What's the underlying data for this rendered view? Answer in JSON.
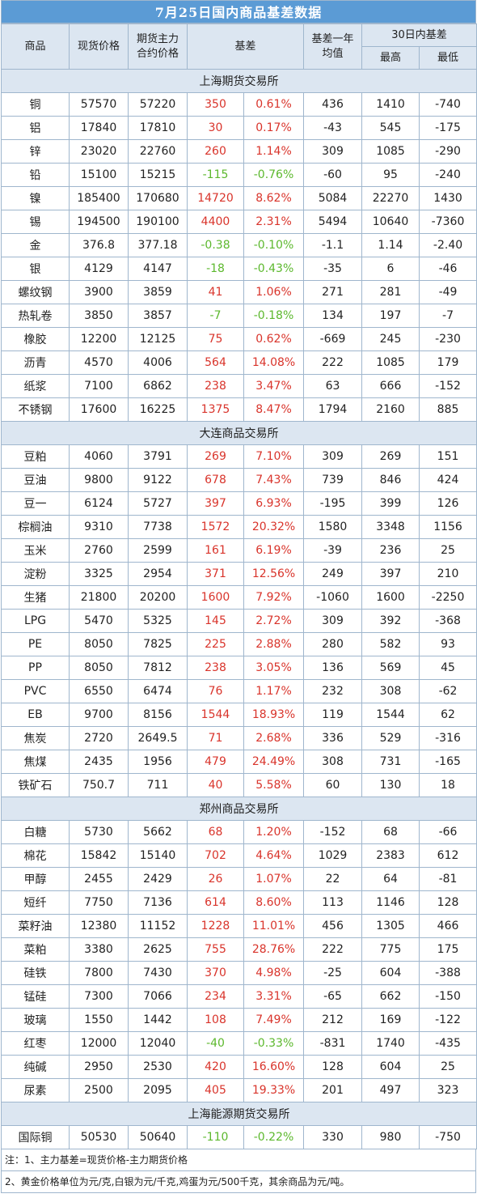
{
  "title": "7月25日国内商品基差数据",
  "headers": {
    "commodity": "商品",
    "spot": "现货价格",
    "futures_line1": "期货主力",
    "futures_line2": "合约价格",
    "basis": "基差",
    "avg_line1": "基差一年",
    "avg_line2": "均值",
    "range30": "30日内基差",
    "high": "最高",
    "low": "最低"
  },
  "colors": {
    "header_bg": "#5b9bd5",
    "section_bg": "#dce6f1",
    "positive": "#d9342b",
    "negative": "#5cb82d",
    "border": "#9fb6cd"
  },
  "sections": [
    {
      "name": "上海期货交易所",
      "rows": [
        {
          "name": "铜",
          "spot": "57570",
          "futures": "57220",
          "basis": "350",
          "pct": "0.61%",
          "avg": "436",
          "high": "1410",
          "low": "-740"
        },
        {
          "name": "铝",
          "spot": "17840",
          "futures": "17810",
          "basis": "30",
          "pct": "0.17%",
          "avg": "-43",
          "high": "545",
          "low": "-175"
        },
        {
          "name": "锌",
          "spot": "23020",
          "futures": "22760",
          "basis": "260",
          "pct": "1.14%",
          "avg": "309",
          "high": "1085",
          "low": "-290"
        },
        {
          "name": "铅",
          "spot": "15100",
          "futures": "15215",
          "basis": "-115",
          "pct": "-0.76%",
          "avg": "-60",
          "high": "95",
          "low": "-240"
        },
        {
          "name": "镍",
          "spot": "185400",
          "futures": "170680",
          "basis": "14720",
          "pct": "8.62%",
          "avg": "5084",
          "high": "22270",
          "low": "1430"
        },
        {
          "name": "锡",
          "spot": "194500",
          "futures": "190100",
          "basis": "4400",
          "pct": "2.31%",
          "avg": "5494",
          "high": "10640",
          "low": "-7360"
        },
        {
          "name": "金",
          "spot": "376.8",
          "futures": "377.18",
          "basis": "-0.38",
          "pct": "-0.10%",
          "avg": "-1.1",
          "high": "1.14",
          "low": "-2.40"
        },
        {
          "name": "银",
          "spot": "4129",
          "futures": "4147",
          "basis": "-18",
          "pct": "-0.43%",
          "avg": "-35",
          "high": "6",
          "low": "-46"
        },
        {
          "name": "螺纹钢",
          "spot": "3900",
          "futures": "3859",
          "basis": "41",
          "pct": "1.06%",
          "avg": "271",
          "high": "281",
          "low": "-49"
        },
        {
          "name": "热轧卷",
          "spot": "3850",
          "futures": "3857",
          "basis": "-7",
          "pct": "-0.18%",
          "avg": "134",
          "high": "197",
          "low": "-7"
        },
        {
          "name": "橡胶",
          "spot": "12200",
          "futures": "12125",
          "basis": "75",
          "pct": "0.62%",
          "avg": "-669",
          "high": "245",
          "low": "-230"
        },
        {
          "name": "沥青",
          "spot": "4570",
          "futures": "4006",
          "basis": "564",
          "pct": "14.08%",
          "avg": "222",
          "high": "1085",
          "low": "179"
        },
        {
          "name": "纸浆",
          "spot": "7100",
          "futures": "6862",
          "basis": "238",
          "pct": "3.47%",
          "avg": "63",
          "high": "666",
          "low": "-152"
        },
        {
          "name": "不锈钢",
          "spot": "17600",
          "futures": "16225",
          "basis": "1375",
          "pct": "8.47%",
          "avg": "1794",
          "high": "2160",
          "low": "885"
        }
      ]
    },
    {
      "name": "大连商品交易所",
      "rows": [
        {
          "name": "豆粕",
          "spot": "4060",
          "futures": "3791",
          "basis": "269",
          "pct": "7.10%",
          "avg": "309",
          "high": "269",
          "low": "151"
        },
        {
          "name": "豆油",
          "spot": "9800",
          "futures": "9122",
          "basis": "678",
          "pct": "7.43%",
          "avg": "739",
          "high": "846",
          "low": "424"
        },
        {
          "name": "豆一",
          "spot": "6124",
          "futures": "5727",
          "basis": "397",
          "pct": "6.93%",
          "avg": "-195",
          "high": "399",
          "low": "126"
        },
        {
          "name": "棕榈油",
          "spot": "9310",
          "futures": "7738",
          "basis": "1572",
          "pct": "20.32%",
          "avg": "1580",
          "high": "3348",
          "low": "1156"
        },
        {
          "name": "玉米",
          "spot": "2760",
          "futures": "2599",
          "basis": "161",
          "pct": "6.19%",
          "avg": "-39",
          "high": "236",
          "low": "25"
        },
        {
          "name": "淀粉",
          "spot": "3325",
          "futures": "2954",
          "basis": "371",
          "pct": "12.56%",
          "avg": "249",
          "high": "397",
          "low": "210"
        },
        {
          "name": "生猪",
          "spot": "21800",
          "futures": "20200",
          "basis": "1600",
          "pct": "7.92%",
          "avg": "-1060",
          "high": "1600",
          "low": "-2250"
        },
        {
          "name": "LPG",
          "spot": "5470",
          "futures": "5325",
          "basis": "145",
          "pct": "2.72%",
          "avg": "309",
          "high": "392",
          "low": "-368"
        },
        {
          "name": "PE",
          "spot": "8050",
          "futures": "7825",
          "basis": "225",
          "pct": "2.88%",
          "avg": "280",
          "high": "582",
          "low": "93"
        },
        {
          "name": "PP",
          "spot": "8050",
          "futures": "7812",
          "basis": "238",
          "pct": "3.05%",
          "avg": "136",
          "high": "569",
          "low": "45"
        },
        {
          "name": "PVC",
          "spot": "6550",
          "futures": "6474",
          "basis": "76",
          "pct": "1.17%",
          "avg": "232",
          "high": "308",
          "low": "-62"
        },
        {
          "name": "EB",
          "spot": "9700",
          "futures": "8156",
          "basis": "1544",
          "pct": "18.93%",
          "avg": "119",
          "high": "1544",
          "low": "62"
        },
        {
          "name": "焦炭",
          "spot": "2720",
          "futures": "2649.5",
          "basis": "71",
          "pct": "2.68%",
          "avg": "336",
          "high": "529",
          "low": "-316"
        },
        {
          "name": "焦煤",
          "spot": "2435",
          "futures": "1956",
          "basis": "479",
          "pct": "24.49%",
          "avg": "308",
          "high": "731",
          "low": "-165"
        },
        {
          "name": "铁矿石",
          "spot": "750.7",
          "futures": "711",
          "basis": "40",
          "pct": "5.58%",
          "avg": "60",
          "high": "130",
          "low": "18"
        }
      ]
    },
    {
      "name": "郑州商品交易所",
      "rows": [
        {
          "name": "白糖",
          "spot": "5730",
          "futures": "5662",
          "basis": "68",
          "pct": "1.20%",
          "avg": "-152",
          "high": "68",
          "low": "-66"
        },
        {
          "name": "棉花",
          "spot": "15842",
          "futures": "15140",
          "basis": "702",
          "pct": "4.64%",
          "avg": "1029",
          "high": "2383",
          "low": "612"
        },
        {
          "name": "甲醇",
          "spot": "2455",
          "futures": "2429",
          "basis": "26",
          "pct": "1.07%",
          "avg": "22",
          "high": "64",
          "low": "-81"
        },
        {
          "name": "短纤",
          "spot": "7750",
          "futures": "7136",
          "basis": "614",
          "pct": "8.60%",
          "avg": "113",
          "high": "1146",
          "low": "128"
        },
        {
          "name": "菜籽油",
          "spot": "12380",
          "futures": "11152",
          "basis": "1228",
          "pct": "11.01%",
          "avg": "456",
          "high": "1305",
          "low": "466"
        },
        {
          "name": "菜粕",
          "spot": "3380",
          "futures": "2625",
          "basis": "755",
          "pct": "28.76%",
          "avg": "222",
          "high": "775",
          "low": "175"
        },
        {
          "name": "硅铁",
          "spot": "7800",
          "futures": "7430",
          "basis": "370",
          "pct": "4.98%",
          "avg": "-25",
          "high": "604",
          "low": "-388"
        },
        {
          "name": "锰硅",
          "spot": "7300",
          "futures": "7066",
          "basis": "234",
          "pct": "3.31%",
          "avg": "-65",
          "high": "662",
          "low": "-150"
        },
        {
          "name": "玻璃",
          "spot": "1550",
          "futures": "1442",
          "basis": "108",
          "pct": "7.49%",
          "avg": "212",
          "high": "169",
          "low": "-122"
        },
        {
          "name": "红枣",
          "spot": "12000",
          "futures": "12040",
          "basis": "-40",
          "pct": "-0.33%",
          "avg": "-831",
          "high": "1740",
          "low": "-435"
        },
        {
          "name": "纯碱",
          "spot": "2950",
          "futures": "2530",
          "basis": "420",
          "pct": "16.60%",
          "avg": "128",
          "high": "604",
          "low": "25"
        },
        {
          "name": "尿素",
          "spot": "2500",
          "futures": "2095",
          "basis": "405",
          "pct": "19.33%",
          "avg": "201",
          "high": "497",
          "low": "323"
        }
      ]
    },
    {
      "name": "上海能源期货交易所",
      "rows": [
        {
          "name": "国际铜",
          "spot": "50530",
          "futures": "50640",
          "basis": "-110",
          "pct": "-0.22%",
          "avg": "330",
          "high": "980",
          "low": "-750"
        }
      ]
    }
  ],
  "notes": [
    "注：1、主力基差=现货价格-主力期货价格",
    "2、黄金价格单位为元/克,白银为元/千克,鸡蛋为元/500千克，其余商品为元/吨。"
  ]
}
